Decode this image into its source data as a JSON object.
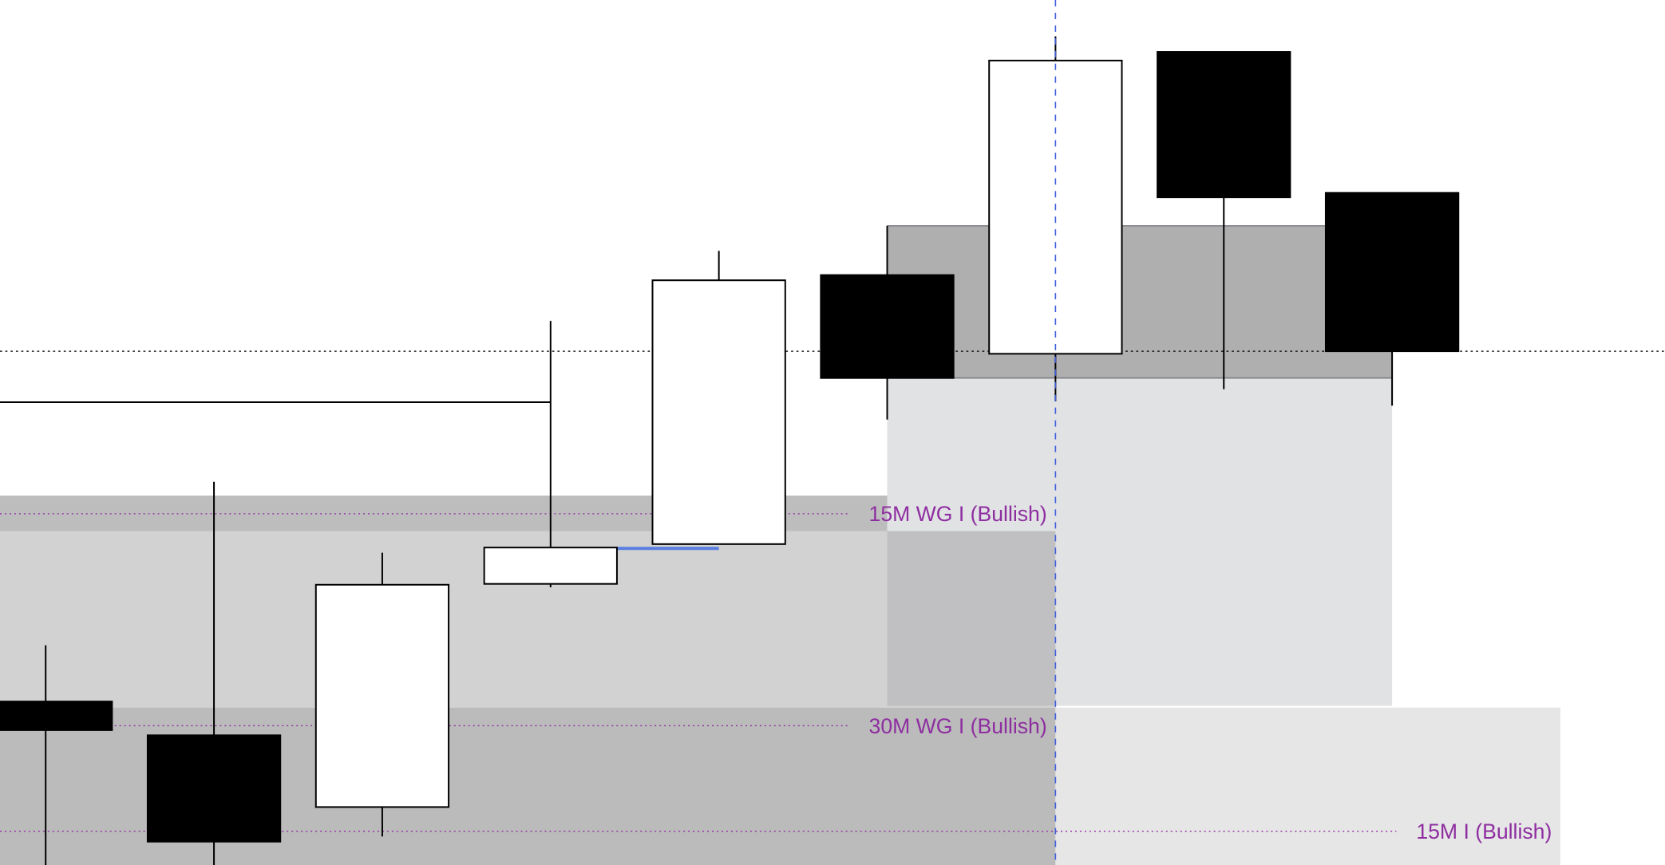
{
  "chart_data": {
    "type": "candlestick",
    "title": "",
    "xlabel": "",
    "ylabel": "",
    "ylim": [
      0,
      100
    ],
    "grid": false,
    "colors": {
      "bullish_body": "#ffffff",
      "bearish_body": "#000000",
      "label": "#8e2ea0",
      "crosshair": "#3b5bdb"
    },
    "candles": [
      {
        "open": 18.9,
        "high": 25.4,
        "low": 0.0,
        "close": 15.6
      },
      {
        "open": 15.0,
        "high": 44.3,
        "low": 0.0,
        "close": 2.7
      },
      {
        "open": 6.7,
        "high": 36.1,
        "low": 3.3,
        "close": 32.4
      },
      {
        "open": 32.5,
        "high": 62.9,
        "low": 32.1,
        "close": 36.7
      },
      {
        "open": 37.1,
        "high": 71.0,
        "low": 37.1,
        "close": 67.6
      },
      {
        "open": 68.2,
        "high": 73.9,
        "low": 51.5,
        "close": 56.3
      },
      {
        "open": 59.1,
        "high": 95.8,
        "low": 53.6,
        "close": 93.0
      },
      {
        "open": 94.0,
        "high": 94.0,
        "low": 55.0,
        "close": 77.2
      },
      {
        "open": 77.7,
        "high": 77.7,
        "low": 53.1,
        "close": 59.4
      }
    ],
    "zones": [
      {
        "from_bar": -1,
        "to_bar": 6,
        "low": 18.2,
        "high": 42.7,
        "color": "#d2d2d2"
      },
      {
        "from_bar": -1,
        "to_bar": 6,
        "low": 38.6,
        "high": 42.7,
        "color": "#bdbdbd"
      },
      {
        "from_bar": -1,
        "to_bar": 6,
        "low": 0,
        "high": 18.2,
        "color": "#bbbbbb"
      },
      {
        "from_bar": 6,
        "to_bar": 9,
        "low": 0,
        "high": 18.2,
        "color": "#e6e6e6"
      },
      {
        "from_bar": 5,
        "to_bar": 8,
        "low": 18.4,
        "high": 56.3,
        "color": "#e1e2e4"
      },
      {
        "from_bar": 5,
        "to_bar": 6,
        "low": 18.4,
        "high": 38.6,
        "color": "#c0c0c2"
      },
      {
        "from_bar": 5,
        "to_bar": 8,
        "low": 56.3,
        "high": 73.9,
        "color": "#afafaf"
      }
    ],
    "levels": [
      {
        "label": "15M WG I (Bullish)",
        "price": 40.6,
        "to_bar": 6
      },
      {
        "label": "30M WG I (Bullish)",
        "price": 16.1,
        "to_bar": 6
      },
      {
        "label": "15M I (Bullish)",
        "price": 3.9,
        "to_bar": 9
      }
    ],
    "current_price_line": 59.4,
    "horizontal_line": {
      "price": 53.5,
      "to_bar": 3
    },
    "highlight_segment": {
      "price": 36.6,
      "from_bar": 3.4,
      "to_bar": 4
    },
    "crosshair_bar": 6
  }
}
